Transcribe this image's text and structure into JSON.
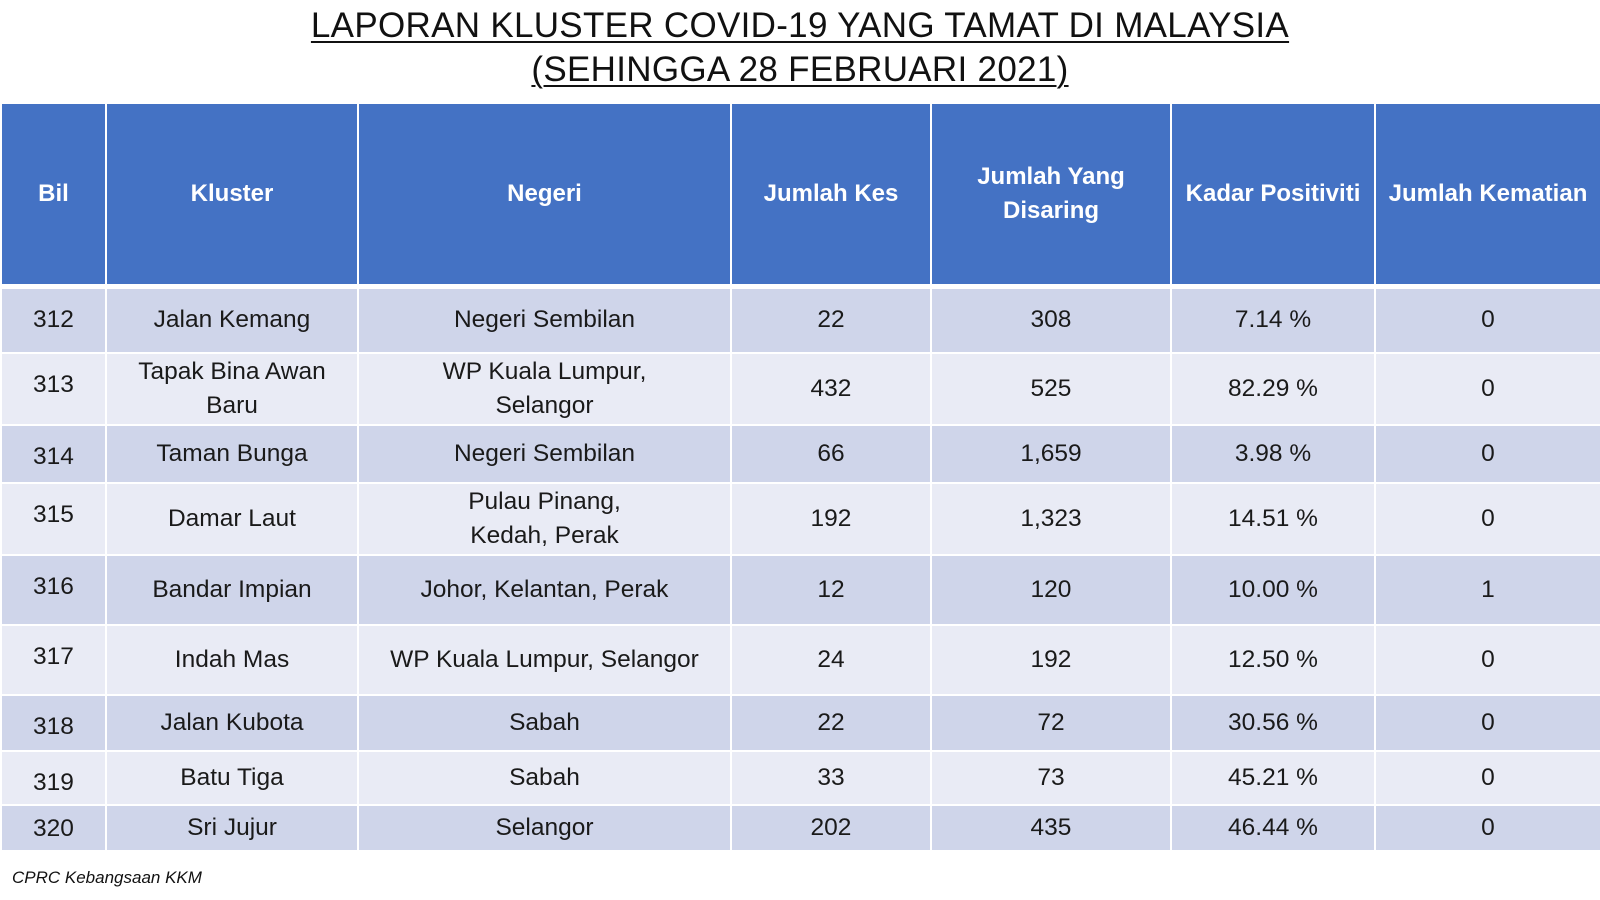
{
  "title": {
    "line1": "LAPORAN KLUSTER COVID-19 YANG TAMAT DI MALAYSIA",
    "line2": "(SEHINGGA  28 FEBRUARI 2021)"
  },
  "table": {
    "headers": {
      "bil": "Bil",
      "kluster": "Kluster",
      "negeri": "Negeri",
      "jumlah_kes": "Jumlah Kes",
      "jumlah_disaring_1": "Jumlah Yang",
      "jumlah_disaring_2": "Disaring",
      "kadar_positiviti": "Kadar Positiviti",
      "jumlah_kematian": "Jumlah Kematian"
    },
    "rows": [
      {
        "bil": "312",
        "kluster_1": "Jalan Kemang",
        "kluster_2": "",
        "negeri_1": "Negeri Sembilan",
        "negeri_2": "",
        "kes": "22",
        "disaring": "308",
        "positiviti": "7.14 %",
        "kematian": "0"
      },
      {
        "bil": "313",
        "kluster_1": "Tapak Bina Awan",
        "kluster_2": "Baru",
        "negeri_1": "WP Kuala Lumpur,",
        "negeri_2": "Selangor",
        "kes": "432",
        "disaring": "525",
        "positiviti": "82.29 %",
        "kematian": "0"
      },
      {
        "bil": "314",
        "kluster_1": "Taman Bunga",
        "kluster_2": "",
        "negeri_1": "Negeri Sembilan",
        "negeri_2": "",
        "kes": "66",
        "disaring": "1,659",
        "positiviti": "3.98 %",
        "kematian": "0"
      },
      {
        "bil": "315",
        "kluster_1": "Damar Laut",
        "kluster_2": "",
        "negeri_1": "Pulau Pinang,",
        "negeri_2": "Kedah, Perak",
        "kes": "192",
        "disaring": "1,323",
        "positiviti": "14.51 %",
        "kematian": "0"
      },
      {
        "bil": "316",
        "kluster_1": "Bandar Impian",
        "kluster_2": "",
        "negeri_1": "Johor, Kelantan, Perak",
        "negeri_2": "",
        "kes": "12",
        "disaring": "120",
        "positiviti": "10.00 %",
        "kematian": "1"
      },
      {
        "bil": "317",
        "kluster_1": "Indah Mas",
        "kluster_2": "",
        "negeri_1": "WP Kuala Lumpur, Selangor",
        "negeri_2": "",
        "kes": "24",
        "disaring": "192",
        "positiviti": "12.50 %",
        "kematian": "0"
      },
      {
        "bil": "318",
        "kluster_1": "Jalan Kubota",
        "kluster_2": "",
        "negeri_1": "Sabah",
        "negeri_2": "",
        "kes": "22",
        "disaring": "72",
        "positiviti": "30.56 %",
        "kematian": "0"
      },
      {
        "bil": "319",
        "kluster_1": "Batu Tiga",
        "kluster_2": "",
        "negeri_1": "Sabah",
        "negeri_2": "",
        "kes": "33",
        "disaring": "73",
        "positiviti": "45.21 %",
        "kematian": "0"
      },
      {
        "bil": "320",
        "kluster_1": "Sri Jujur",
        "kluster_2": "",
        "negeri_1": "Selangor",
        "negeri_2": "",
        "kes": "202",
        "disaring": "435",
        "positiviti": "46.44 %",
        "kematian": "0"
      }
    ]
  },
  "source": "CPRC Kebangsaan KKM",
  "colors": {
    "header_bg": "#4472c4",
    "row_odd_bg": "#cfd5ea",
    "row_even_bg": "#e9ebf5",
    "header_text": "#ffffff"
  }
}
